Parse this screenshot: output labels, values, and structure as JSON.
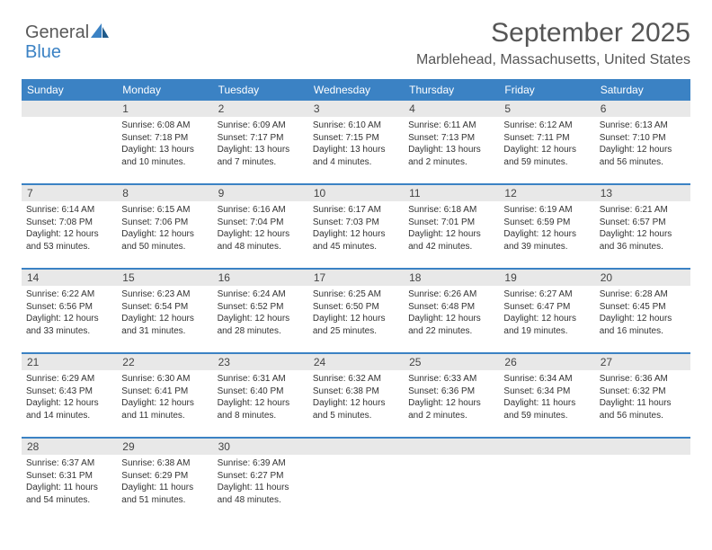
{
  "brand": {
    "word1": "General",
    "word2": "Blue"
  },
  "header": {
    "title": "September 2025",
    "subtitle": "Marblehead, Massachusetts, United States"
  },
  "colors": {
    "accent": "#3b82c4",
    "header_bg": "#3b82c4",
    "daynum_bg": "#e8e8e8",
    "text": "#333333",
    "title_text": "#555555"
  },
  "fonts": {
    "title_size_pt": 22,
    "subtitle_size_pt": 12,
    "dow_size_pt": 9,
    "cell_size_pt": 7.5
  },
  "days_of_week": [
    "Sunday",
    "Monday",
    "Tuesday",
    "Wednesday",
    "Thursday",
    "Friday",
    "Saturday"
  ],
  "weeks": [
    [
      null,
      {
        "n": "1",
        "sr": "Sunrise: 6:08 AM",
        "ss": "Sunset: 7:18 PM",
        "d1": "Daylight: 13 hours",
        "d2": "and 10 minutes."
      },
      {
        "n": "2",
        "sr": "Sunrise: 6:09 AM",
        "ss": "Sunset: 7:17 PM",
        "d1": "Daylight: 13 hours",
        "d2": "and 7 minutes."
      },
      {
        "n": "3",
        "sr": "Sunrise: 6:10 AM",
        "ss": "Sunset: 7:15 PM",
        "d1": "Daylight: 13 hours",
        "d2": "and 4 minutes."
      },
      {
        "n": "4",
        "sr": "Sunrise: 6:11 AM",
        "ss": "Sunset: 7:13 PM",
        "d1": "Daylight: 13 hours",
        "d2": "and 2 minutes."
      },
      {
        "n": "5",
        "sr": "Sunrise: 6:12 AM",
        "ss": "Sunset: 7:11 PM",
        "d1": "Daylight: 12 hours",
        "d2": "and 59 minutes."
      },
      {
        "n": "6",
        "sr": "Sunrise: 6:13 AM",
        "ss": "Sunset: 7:10 PM",
        "d1": "Daylight: 12 hours",
        "d2": "and 56 minutes."
      }
    ],
    [
      {
        "n": "7",
        "sr": "Sunrise: 6:14 AM",
        "ss": "Sunset: 7:08 PM",
        "d1": "Daylight: 12 hours",
        "d2": "and 53 minutes."
      },
      {
        "n": "8",
        "sr": "Sunrise: 6:15 AM",
        "ss": "Sunset: 7:06 PM",
        "d1": "Daylight: 12 hours",
        "d2": "and 50 minutes."
      },
      {
        "n": "9",
        "sr": "Sunrise: 6:16 AM",
        "ss": "Sunset: 7:04 PM",
        "d1": "Daylight: 12 hours",
        "d2": "and 48 minutes."
      },
      {
        "n": "10",
        "sr": "Sunrise: 6:17 AM",
        "ss": "Sunset: 7:03 PM",
        "d1": "Daylight: 12 hours",
        "d2": "and 45 minutes."
      },
      {
        "n": "11",
        "sr": "Sunrise: 6:18 AM",
        "ss": "Sunset: 7:01 PM",
        "d1": "Daylight: 12 hours",
        "d2": "and 42 minutes."
      },
      {
        "n": "12",
        "sr": "Sunrise: 6:19 AM",
        "ss": "Sunset: 6:59 PM",
        "d1": "Daylight: 12 hours",
        "d2": "and 39 minutes."
      },
      {
        "n": "13",
        "sr": "Sunrise: 6:21 AM",
        "ss": "Sunset: 6:57 PM",
        "d1": "Daylight: 12 hours",
        "d2": "and 36 minutes."
      }
    ],
    [
      {
        "n": "14",
        "sr": "Sunrise: 6:22 AM",
        "ss": "Sunset: 6:56 PM",
        "d1": "Daylight: 12 hours",
        "d2": "and 33 minutes."
      },
      {
        "n": "15",
        "sr": "Sunrise: 6:23 AM",
        "ss": "Sunset: 6:54 PM",
        "d1": "Daylight: 12 hours",
        "d2": "and 31 minutes."
      },
      {
        "n": "16",
        "sr": "Sunrise: 6:24 AM",
        "ss": "Sunset: 6:52 PM",
        "d1": "Daylight: 12 hours",
        "d2": "and 28 minutes."
      },
      {
        "n": "17",
        "sr": "Sunrise: 6:25 AM",
        "ss": "Sunset: 6:50 PM",
        "d1": "Daylight: 12 hours",
        "d2": "and 25 minutes."
      },
      {
        "n": "18",
        "sr": "Sunrise: 6:26 AM",
        "ss": "Sunset: 6:48 PM",
        "d1": "Daylight: 12 hours",
        "d2": "and 22 minutes."
      },
      {
        "n": "19",
        "sr": "Sunrise: 6:27 AM",
        "ss": "Sunset: 6:47 PM",
        "d1": "Daylight: 12 hours",
        "d2": "and 19 minutes."
      },
      {
        "n": "20",
        "sr": "Sunrise: 6:28 AM",
        "ss": "Sunset: 6:45 PM",
        "d1": "Daylight: 12 hours",
        "d2": "and 16 minutes."
      }
    ],
    [
      {
        "n": "21",
        "sr": "Sunrise: 6:29 AM",
        "ss": "Sunset: 6:43 PM",
        "d1": "Daylight: 12 hours",
        "d2": "and 14 minutes."
      },
      {
        "n": "22",
        "sr": "Sunrise: 6:30 AM",
        "ss": "Sunset: 6:41 PM",
        "d1": "Daylight: 12 hours",
        "d2": "and 11 minutes."
      },
      {
        "n": "23",
        "sr": "Sunrise: 6:31 AM",
        "ss": "Sunset: 6:40 PM",
        "d1": "Daylight: 12 hours",
        "d2": "and 8 minutes."
      },
      {
        "n": "24",
        "sr": "Sunrise: 6:32 AM",
        "ss": "Sunset: 6:38 PM",
        "d1": "Daylight: 12 hours",
        "d2": "and 5 minutes."
      },
      {
        "n": "25",
        "sr": "Sunrise: 6:33 AM",
        "ss": "Sunset: 6:36 PM",
        "d1": "Daylight: 12 hours",
        "d2": "and 2 minutes."
      },
      {
        "n": "26",
        "sr": "Sunrise: 6:34 AM",
        "ss": "Sunset: 6:34 PM",
        "d1": "Daylight: 11 hours",
        "d2": "and 59 minutes."
      },
      {
        "n": "27",
        "sr": "Sunrise: 6:36 AM",
        "ss": "Sunset: 6:32 PM",
        "d1": "Daylight: 11 hours",
        "d2": "and 56 minutes."
      }
    ],
    [
      {
        "n": "28",
        "sr": "Sunrise: 6:37 AM",
        "ss": "Sunset: 6:31 PM",
        "d1": "Daylight: 11 hours",
        "d2": "and 54 minutes."
      },
      {
        "n": "29",
        "sr": "Sunrise: 6:38 AM",
        "ss": "Sunset: 6:29 PM",
        "d1": "Daylight: 11 hours",
        "d2": "and 51 minutes."
      },
      {
        "n": "30",
        "sr": "Sunrise: 6:39 AM",
        "ss": "Sunset: 6:27 PM",
        "d1": "Daylight: 11 hours",
        "d2": "and 48 minutes."
      },
      null,
      null,
      null,
      null
    ]
  ]
}
